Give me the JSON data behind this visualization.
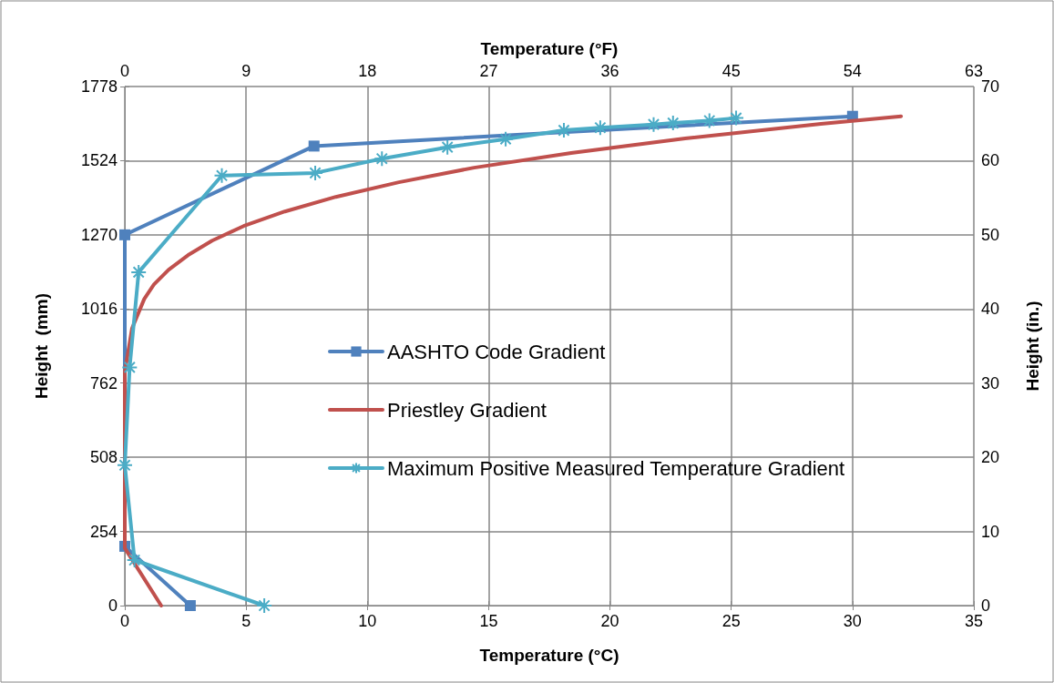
{
  "chart_data": {
    "type": "line",
    "xlabel": "Temperature (°C)",
    "x2label": "Temperature (°F)",
    "ylabel": "Height  (mm)",
    "y2label": "Height (in.)",
    "xlim": [
      0,
      35
    ],
    "xticks": [
      0,
      5,
      10,
      15,
      20,
      25,
      30,
      35
    ],
    "x2lim": [
      0,
      63
    ],
    "x2ticks": [
      0,
      9,
      18,
      27,
      36,
      45,
      54,
      63
    ],
    "ylim": [
      0,
      1778
    ],
    "yticks": [
      0,
      254,
      508,
      762,
      1016,
      1270,
      1524,
      1778
    ],
    "y2lim": [
      0,
      70
    ],
    "y2ticks": [
      0,
      10,
      20,
      30,
      40,
      50,
      60,
      70
    ],
    "grid": true,
    "legend": "center",
    "line_style": "solid",
    "series": [
      {
        "name": "AASHTO Code Gradient",
        "color": "#4f81bd",
        "marker": "square",
        "x": [
          2.7,
          0,
          0,
          7.8,
          30
        ],
        "values": [
          0,
          203,
          1270,
          1574,
          1676
        ]
      },
      {
        "name": "Priestley Gradient",
        "color": "#c0504d",
        "marker": "none",
        "x": [
          1.5,
          0,
          0,
          0.3,
          0.8,
          1.2,
          1.8,
          2.6,
          3.6,
          4.9,
          6.6,
          8.7,
          11.3,
          14.4,
          18.4,
          23.1,
          28.7,
          32
        ],
        "values": [
          0,
          197,
          800,
          950,
          1050,
          1100,
          1150,
          1200,
          1250,
          1300,
          1350,
          1400,
          1450,
          1500,
          1550,
          1600,
          1650,
          1676
        ]
      },
      {
        "name": "Maximum Positive Measured Temperature Gradient",
        "color": "#4bacc6",
        "marker": "cross",
        "x": [
          5.75,
          0.4,
          0,
          0.2,
          0.57,
          4,
          7.85,
          10.6,
          13.3,
          15.7,
          18.1,
          19.6,
          21.8,
          22.6,
          24.1,
          25.2
        ],
        "values": [
          0,
          156,
          481,
          816,
          1142,
          1473,
          1482,
          1531,
          1570,
          1598,
          1628,
          1637,
          1648,
          1653,
          1661,
          1670
        ]
      }
    ]
  }
}
